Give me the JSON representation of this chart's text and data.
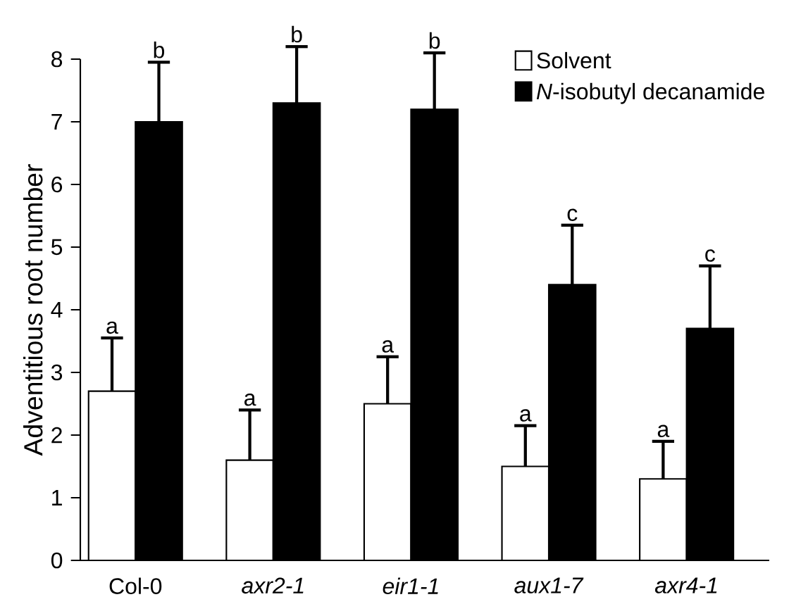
{
  "chart_data": {
    "type": "bar",
    "ylabel": "Adventitious root number",
    "categories": [
      "Col-0",
      "*axr2-1*",
      "*eir1-1*",
      "*aux1-7*",
      "*axr4-1*"
    ],
    "series": [
      {
        "name": "Solvent",
        "color": "#ffffff",
        "values": [
          2.7,
          1.6,
          2.5,
          1.5,
          1.3
        ],
        "errors": [
          [
            2.7,
            3.55
          ],
          [
            1.6,
            2.4
          ],
          [
            2.5,
            3.25
          ],
          [
            1.5,
            2.15
          ],
          [
            1.3,
            1.9
          ]
        ]
      },
      {
        "name": "*N*-isobutyl decanamide",
        "color": "#000000",
        "values": [
          7.0,
          7.3,
          7.2,
          4.4,
          3.7
        ],
        "errors": [
          [
            7.0,
            7.95
          ],
          [
            7.3,
            8.2
          ],
          [
            7.2,
            8.1
          ],
          [
            4.4,
            5.35
          ],
          [
            3.7,
            4.7
          ]
        ]
      }
    ],
    "annotations": [
      "a",
      "b",
      "a",
      "b",
      "a",
      "b",
      "a",
      "c",
      "a",
      "c"
    ],
    "ylim": [
      0,
      8
    ],
    "yticks": [
      0,
      1,
      2,
      3,
      4,
      5,
      6,
      7,
      8
    ],
    "grid": false,
    "legend": "top right"
  }
}
